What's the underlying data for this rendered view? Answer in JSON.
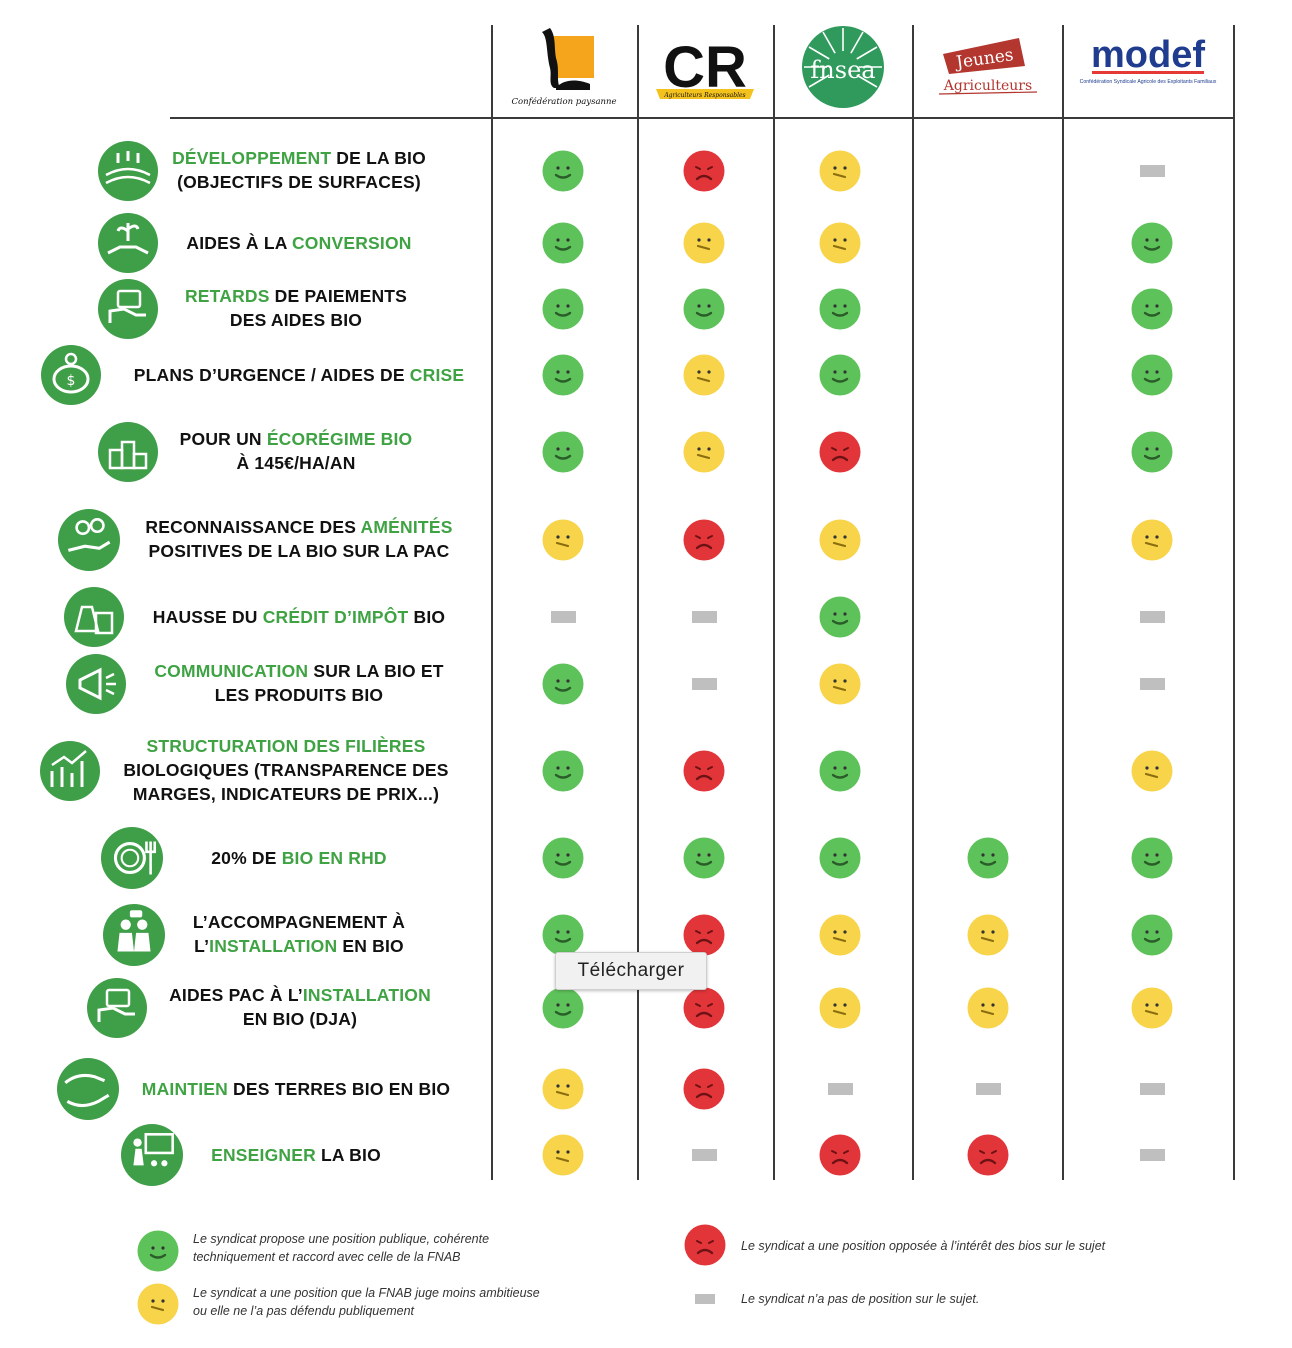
{
  "columns": [
    {
      "key": "cp",
      "logo_text": "Confédération paysanne"
    },
    {
      "key": "cr",
      "logo_text": "CR",
      "logo_sub": "Agriculteurs Responsables"
    },
    {
      "key": "fnsea",
      "logo_text": "fnsea"
    },
    {
      "key": "ja",
      "logo_text": "Jeunes",
      "logo_text2": "Agriculteurs"
    },
    {
      "key": "modef",
      "logo_text": "modef",
      "logo_sub": "Confédération Syndicale Agricole des Exploitants Familiaux"
    }
  ],
  "rows": [
    {
      "icon": "tractor-field-icon",
      "parts": [
        [
          "DÉVELOPPEMENT",
          1
        ],
        [
          " DE LA BIO\n(OBJECTIFS DE SURFACES)",
          0
        ]
      ],
      "values": [
        "green",
        "red",
        "yellow",
        "none",
        "dash"
      ]
    },
    {
      "icon": "plant-handshake-icon",
      "parts": [
        [
          "AIDES À LA ",
          0
        ],
        [
          "CONVERSION",
          1
        ]
      ],
      "values": [
        "green",
        "yellow",
        "yellow",
        "none",
        "green"
      ]
    },
    {
      "icon": "money-hand-icon",
      "parts": [
        [
          "RETARDS",
          1
        ],
        [
          " DE PAIEMENTS\nDES AIDES BIO",
          0
        ]
      ],
      "values": [
        "green",
        "green",
        "green",
        "none",
        "green"
      ]
    },
    {
      "icon": "piggy-bank-icon",
      "parts": [
        [
          "PLANS D’URGENCE / AIDES DE ",
          0
        ],
        [
          "CRISE",
          1
        ]
      ],
      "values": [
        "green",
        "yellow",
        "green",
        "none",
        "green"
      ]
    },
    {
      "icon": "podium-icon",
      "parts": [
        [
          "POUR UN ",
          0
        ],
        [
          "ÉCORÉGIME BIO",
          1
        ],
        [
          "\nÀ 145€/HA/AN",
          0
        ]
      ],
      "values": [
        "green",
        "yellow",
        "red",
        "none",
        "green"
      ]
    },
    {
      "icon": "hand-coins-icon",
      "parts": [
        [
          "RECONNAISSANCE DES ",
          0
        ],
        [
          "AMÉNITÉS",
          1
        ],
        [
          "\nPOSITIVES DE LA BIO SUR LA PAC",
          0
        ]
      ],
      "values": [
        "yellow",
        "red",
        "yellow",
        "none",
        "yellow"
      ]
    },
    {
      "icon": "money-bag-calculator-icon",
      "parts": [
        [
          "HAUSSE DU ",
          0
        ],
        [
          "CRÉDIT D’IMPÔT",
          1
        ],
        [
          " BIO",
          0
        ]
      ],
      "values": [
        "dash",
        "dash",
        "green",
        "none",
        "dash"
      ]
    },
    {
      "icon": "megaphone-icon",
      "parts": [
        [
          "COMMUNICATION",
          1
        ],
        [
          " SUR LA BIO ET\nLES PRODUITS BIO",
          0
        ]
      ],
      "values": [
        "green",
        "dash",
        "yellow",
        "none",
        "dash"
      ]
    },
    {
      "icon": "growth-chart-icon",
      "parts": [
        [
          "STRUCTURATION DES FILIÈRES",
          1
        ],
        [
          "\nBIOLOGIQUES (TRANSPARENCE DES\nMARGES, INDICATEURS DE PRIX...)",
          0
        ]
      ],
      "values": [
        "green",
        "red",
        "green",
        "none",
        "yellow"
      ]
    },
    {
      "icon": "plate-cutlery-icon",
      "parts": [
        [
          "20% DE ",
          0
        ],
        [
          "BIO EN RHD",
          1
        ]
      ],
      "values": [
        "green",
        "green",
        "green",
        "green",
        "green"
      ]
    },
    {
      "icon": "people-talking-icon",
      "parts": [
        [
          "L’ACCOMPAGNEMENT À\nL’",
          0
        ],
        [
          "INSTALLATION",
          1
        ],
        [
          " EN BIO",
          0
        ]
      ],
      "values": [
        "green",
        "red",
        "yellow",
        "yellow",
        "green"
      ]
    },
    {
      "icon": "money-hand-icon",
      "parts": [
        [
          "AIDES PAC À L’",
          0
        ],
        [
          "INSTALLATION",
          1
        ],
        [
          "\nEN BIO (DJA)",
          0
        ]
      ],
      "values": [
        "green",
        "red",
        "yellow",
        "yellow",
        "yellow"
      ]
    },
    {
      "icon": "hands-protect-icon",
      "parts": [
        [
          "MAINTIEN",
          1
        ],
        [
          " DES TERRES BIO EN BIO",
          0
        ]
      ],
      "values": [
        "yellow",
        "red",
        "dash",
        "dash",
        "dash"
      ]
    },
    {
      "icon": "teacher-board-icon",
      "parts": [
        [
          "ENSEIGNER",
          1
        ],
        [
          " LA BIO",
          0
        ]
      ],
      "values": [
        "yellow",
        "dash",
        "red",
        "red",
        "dash"
      ]
    }
  ],
  "tooltip": "Télécharger",
  "legend": {
    "green": "Le syndicat propose une position publique, cohérente\ntechniquement et raccord avec celle de la FNAB",
    "yellow": "Le syndicat a une position que la FNAB juge moins ambitieuse\nou elle ne l’a pas défendu publiquement",
    "red": "Le syndicat a une position opposée à l’intérêt des bios sur le sujet",
    "dash": "Le syndicat n’a pas de position sur le sujet."
  },
  "colors": {
    "green": "#5ec25a",
    "yellow": "#f7d44a",
    "red": "#e2353a",
    "dash": "#bfbfbf",
    "accent": "#3fa344"
  }
}
